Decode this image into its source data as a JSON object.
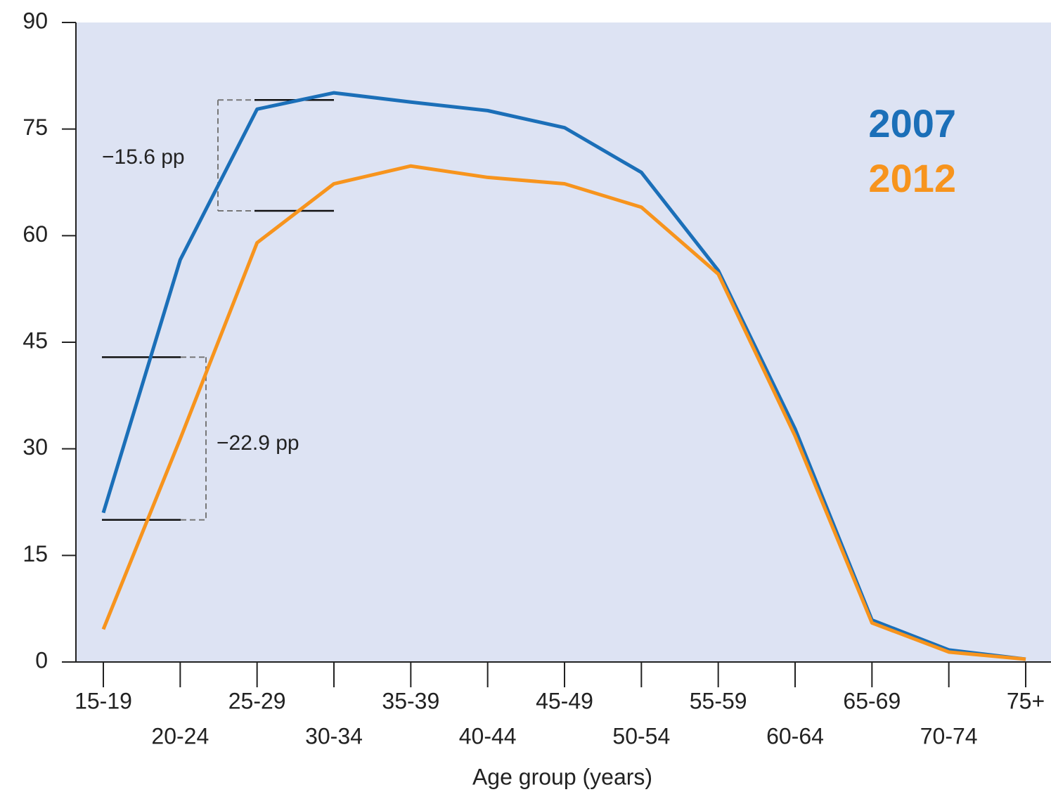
{
  "chart_data": {
    "type": "line",
    "x_label": "Age group (years)",
    "categories": [
      "15-19",
      "20-24",
      "25-29",
      "30-34",
      "35-39",
      "40-44",
      "45-49",
      "50-54",
      "55-59",
      "60-64",
      "65-69",
      "70-74",
      "75+"
    ],
    "series": [
      {
        "name": "2007",
        "color": "#1b6fb8",
        "values": [
          21.0,
          56.6,
          77.8,
          80.1,
          78.8,
          77.6,
          75.2,
          68.9,
          55.1,
          32.8,
          5.9,
          1.7,
          0.4
        ]
      },
      {
        "name": "2012",
        "color": "#f7941d",
        "values": [
          4.6,
          31.4,
          59.0,
          67.3,
          69.8,
          68.2,
          67.3,
          64.0,
          54.6,
          31.8,
          5.5,
          1.4,
          0.4
        ]
      }
    ],
    "ylim": [
      0,
      90
    ],
    "yticks": [
      0,
      15,
      30,
      45,
      60,
      75,
      90
    ],
    "legend": "upper right",
    "background": "#dde3f3",
    "annotations": [
      {
        "text": "−15.6 pp",
        "y": [
          63.5,
          79.1
        ]
      },
      {
        "text": "−22.9 pp",
        "y": [
          20.0,
          42.9
        ]
      }
    ]
  }
}
